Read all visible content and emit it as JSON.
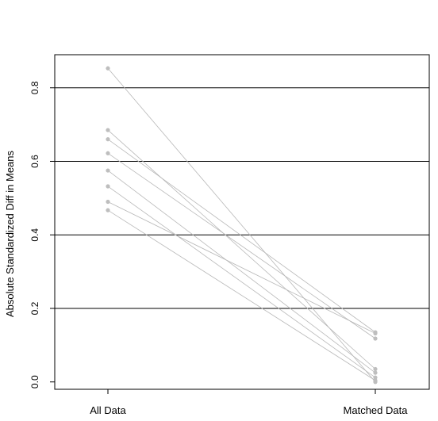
{
  "chart_data": {
    "type": "line",
    "title": "",
    "xlabel": "",
    "ylabel": "Absolute Standardized Diff in Means",
    "categories": [
      "All Data",
      "Matched Data"
    ],
    "yticks": [
      "0.0",
      "0.2",
      "0.4",
      "0.6",
      "0.8"
    ],
    "ylim": [
      -0.02,
      0.89
    ],
    "hlines": [
      0.2,
      0.4,
      0.6,
      0.8
    ],
    "grid": false,
    "legend": "none",
    "series": [
      {
        "values": [
          0.853,
          0.0
        ]
      },
      {
        "values": [
          0.685,
          0.035
        ]
      },
      {
        "values": [
          0.66,
          0.135
        ]
      },
      {
        "values": [
          0.622,
          0.118
        ]
      },
      {
        "values": [
          0.575,
          0.025
        ]
      },
      {
        "values": [
          0.532,
          0.012
        ]
      },
      {
        "values": [
          0.49,
          0.132
        ]
      },
      {
        "values": [
          0.467,
          0.004
        ]
      }
    ],
    "colors": {
      "line": "#b8b8b8",
      "point": "#bebebe",
      "hline": "#000000",
      "frame": "#000000"
    }
  }
}
